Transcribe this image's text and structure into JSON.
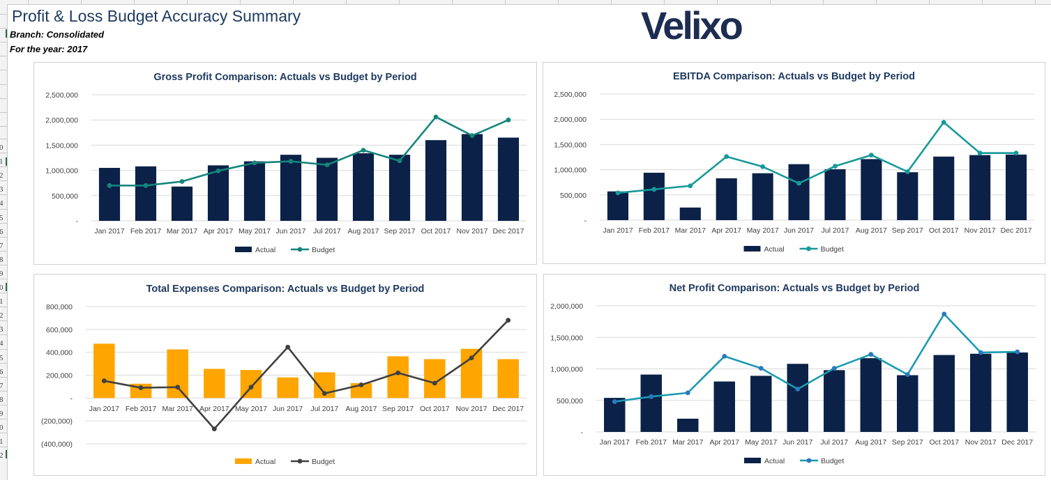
{
  "report": {
    "title": "Profit & Loss Budget Accuracy Summary",
    "branch": "Branch: Consolidated",
    "year": "For the year: 2017"
  },
  "logo": {
    "text": "Velixo",
    "color": "#1d2d52"
  },
  "spreadsheet": {
    "row_numbers": [
      "0",
      "1",
      "2",
      "3",
      "4",
      "5",
      "6",
      "7",
      "8",
      "9",
      "0",
      "1",
      "2",
      "3",
      "4",
      "5",
      "6",
      "7",
      "8",
      "9",
      "0",
      "1",
      "2"
    ]
  },
  "chart_data": [
    {
      "id": "gross-profit",
      "type": "bar+line",
      "title": "Gross Profit Comparison: Actuals vs Budget by Period",
      "categories": [
        "Jan 2017",
        "Feb 2017",
        "Mar 2017",
        "Apr 2017",
        "May 2017",
        "Jun 2017",
        "Jul 2017",
        "Aug 2017",
        "Sep 2017",
        "Oct 2017",
        "Nov 2017",
        "Dec 2017"
      ],
      "series": [
        {
          "name": "Actual",
          "kind": "bar",
          "color": "#0b2147",
          "values": [
            1050000,
            1080000,
            680000,
            1100000,
            1180000,
            1310000,
            1250000,
            1340000,
            1310000,
            1600000,
            1720000,
            1650000
          ]
        },
        {
          "name": "Budget",
          "kind": "line",
          "color": "#14857c",
          "values": [
            700000,
            700000,
            780000,
            990000,
            1150000,
            1180000,
            1110000,
            1400000,
            1190000,
            2060000,
            1690000,
            2000000
          ]
        }
      ],
      "yticks": [
        0,
        500000,
        1000000,
        1500000,
        2000000,
        2500000
      ],
      "ytick_labels": [
        "-",
        "500,000",
        "1,000,000",
        "1,500,000",
        "2,000,000",
        "2,500,000"
      ],
      "ylim": [
        0,
        2500000
      ],
      "legend": "bottom"
    },
    {
      "id": "ebitda",
      "type": "bar+line",
      "title": "EBITDA Comparison: Actuals vs Budget by Period",
      "categories": [
        "Jan 2017",
        "Feb 2017",
        "Mar 2017",
        "Apr 2017",
        "May 2017",
        "Jun 2017",
        "Jul 2017",
        "Aug 2017",
        "Sep 2017",
        "Oct 2017",
        "Nov 2017",
        "Dec 2017"
      ],
      "series": [
        {
          "name": "Actual",
          "kind": "bar",
          "color": "#0b2147",
          "values": [
            570000,
            940000,
            250000,
            830000,
            930000,
            1110000,
            1010000,
            1210000,
            950000,
            1260000,
            1290000,
            1300000
          ]
        },
        {
          "name": "Budget",
          "kind": "line",
          "color": "#16999a",
          "values": [
            540000,
            610000,
            680000,
            1260000,
            1060000,
            730000,
            1070000,
            1290000,
            960000,
            1940000,
            1330000,
            1330000
          ]
        }
      ],
      "yticks": [
        0,
        500000,
        1000000,
        1500000,
        2000000,
        2500000
      ],
      "ytick_labels": [
        "-",
        "500,000",
        "1,000,000",
        "1,500,000",
        "2,000,000",
        "2,500,000"
      ],
      "ylim": [
        0,
        2500000
      ],
      "legend": "bottom"
    },
    {
      "id": "total-expenses",
      "type": "bar+line",
      "title": "Total Expenses Comparison: Actuals vs Budget by Period",
      "categories": [
        "Jan 2017",
        "Feb 2017",
        "Mar 2017",
        "Apr 2017",
        "May 2017",
        "Jun 2017",
        "Jul 2017",
        "Aug 2017",
        "Sep 2017",
        "Oct 2017",
        "Nov 2017",
        "Dec 2017"
      ],
      "series": [
        {
          "name": "Actual",
          "kind": "bar",
          "color": "#ffa500",
          "values": [
            475000,
            125000,
            425000,
            255000,
            245000,
            180000,
            225000,
            130000,
            365000,
            340000,
            430000,
            340000
          ]
        },
        {
          "name": "Budget",
          "kind": "line",
          "color": "#404040",
          "values": [
            150000,
            90000,
            95000,
            -270000,
            95000,
            445000,
            40000,
            115000,
            220000,
            130000,
            350000,
            680000
          ]
        }
      ],
      "yticks": [
        -400000,
        -200000,
        0,
        200000,
        400000,
        600000,
        800000
      ],
      "ytick_labels": [
        "(400,000)",
        "(200,000)",
        "-",
        "200,000",
        "400,000",
        "600,000",
        "800,000"
      ],
      "ylim": [
        -400000,
        800000
      ],
      "legend": "bottom"
    },
    {
      "id": "net-profit",
      "type": "bar+line",
      "title": "Net Profit Comparison: Actuals vs Budget by Period",
      "categories": [
        "Jan 2017",
        "Feb 2017",
        "Mar 2017",
        "Apr 2017",
        "May 2017",
        "Jun 2017",
        "Jul 2017",
        "Aug 2017",
        "Sep 2017",
        "Oct 2017",
        "Nov 2017",
        "Dec 2017"
      ],
      "series": [
        {
          "name": "Actual",
          "kind": "bar",
          "color": "#0b2147",
          "values": [
            540000,
            910000,
            210000,
            800000,
            890000,
            1080000,
            980000,
            1170000,
            900000,
            1220000,
            1240000,
            1260000
          ]
        },
        {
          "name": "Budget",
          "kind": "line",
          "color": "#1a9bb0",
          "marker_color": "#2a78c0",
          "values": [
            480000,
            560000,
            620000,
            1200000,
            1010000,
            680000,
            1010000,
            1230000,
            910000,
            1870000,
            1260000,
            1270000
          ]
        }
      ],
      "yticks": [
        0,
        500000,
        1000000,
        1500000,
        2000000
      ],
      "ytick_labels": [
        "-",
        "500,000",
        "1,000,000",
        "1,500,000",
        "2,000,000"
      ],
      "ylim": [
        0,
        2000000
      ],
      "legend": "bottom"
    }
  ]
}
